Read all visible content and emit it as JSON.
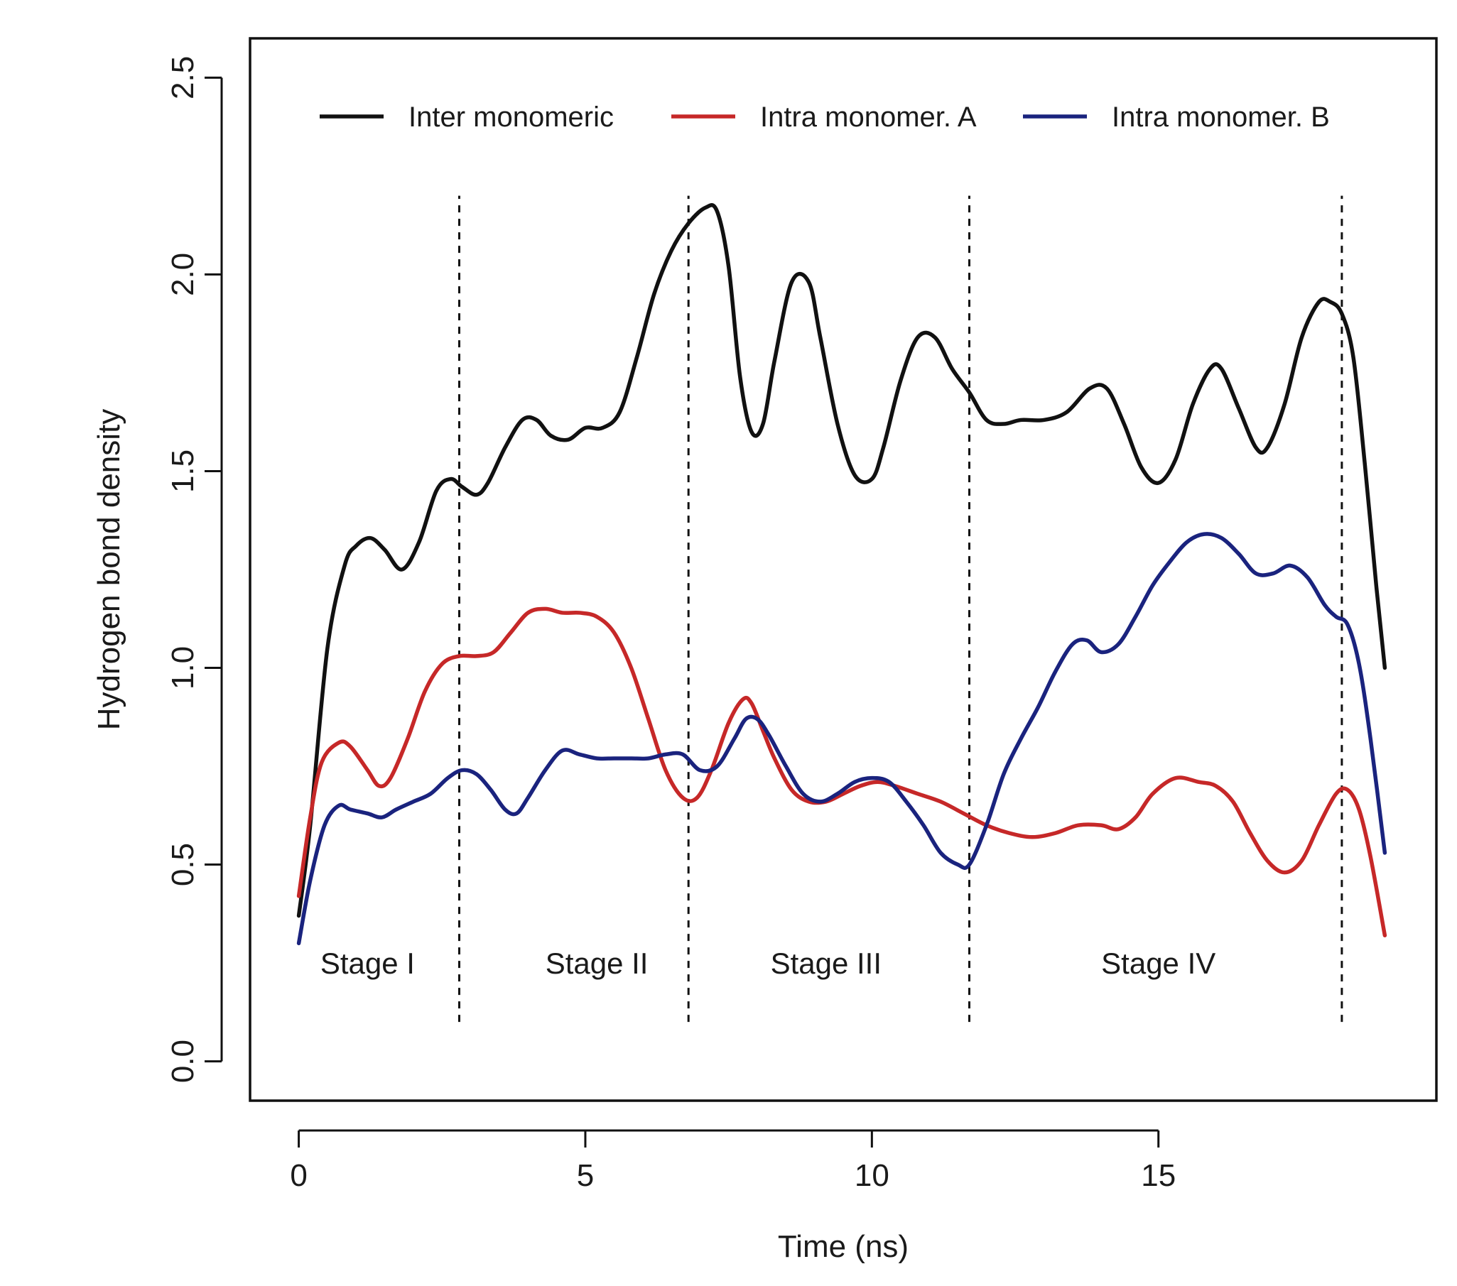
{
  "chart_data": {
    "type": "line",
    "title": "",
    "xlabel": "Time (ns)",
    "ylabel": "Hydrogen bond density",
    "xlim": [
      -0.85,
      19.85
    ],
    "ylim": [
      -0.1,
      2.6
    ],
    "xticks": [
      0,
      5,
      10,
      15
    ],
    "yticks": [
      0.0,
      0.5,
      1.0,
      1.5,
      2.0,
      2.5
    ],
    "xtick_labels": [
      "0",
      "5",
      "10",
      "15"
    ],
    "ytick_labels": [
      "0.0",
      "0.5",
      "1.0",
      "1.5",
      "2.0",
      "2.5"
    ],
    "grid": false,
    "legend_position": "top",
    "stage_boundaries": [
      2.8,
      6.8,
      11.7,
      18.2
    ],
    "stage_labels": [
      {
        "label": "Stage I",
        "x": 1.2,
        "y": 0.25
      },
      {
        "label": "Stage II",
        "x": 5.2,
        "y": 0.25
      },
      {
        "label": "Stage III",
        "x": 9.2,
        "y": 0.25
      },
      {
        "label": "Stage IV",
        "x": 15.0,
        "y": 0.25
      }
    ],
    "series": [
      {
        "name": "Inter monomeric",
        "color": "#111111",
        "x": [
          0,
          0.2,
          0.5,
          0.8,
          1.0,
          1.25,
          1.5,
          1.8,
          2.1,
          2.4,
          2.65,
          2.85,
          3.1,
          3.3,
          3.6,
          3.9,
          4.15,
          4.4,
          4.7,
          5.0,
          5.3,
          5.6,
          5.9,
          6.2,
          6.5,
          6.8,
          7.1,
          7.3,
          7.5,
          7.7,
          7.9,
          8.1,
          8.3,
          8.6,
          8.9,
          9.1,
          9.4,
          9.7,
          10.0,
          10.2,
          10.5,
          10.8,
          11.1,
          11.4,
          11.7,
          12.0,
          12.3,
          12.6,
          13.0,
          13.4,
          13.8,
          14.1,
          14.4,
          14.7,
          15.0,
          15.3,
          15.6,
          15.9,
          16.1,
          16.4,
          16.7,
          16.9,
          17.2,
          17.5,
          17.8,
          18.0,
          18.2,
          18.4,
          18.6,
          18.8,
          18.95
        ],
        "values": [
          0.37,
          0.6,
          1.05,
          1.26,
          1.31,
          1.33,
          1.3,
          1.25,
          1.32,
          1.45,
          1.48,
          1.46,
          1.44,
          1.47,
          1.56,
          1.63,
          1.63,
          1.59,
          1.58,
          1.61,
          1.61,
          1.65,
          1.79,
          1.95,
          2.06,
          2.13,
          2.17,
          2.16,
          2.02,
          1.74,
          1.6,
          1.62,
          1.78,
          1.98,
          1.98,
          1.84,
          1.62,
          1.49,
          1.48,
          1.56,
          1.73,
          1.84,
          1.84,
          1.76,
          1.7,
          1.63,
          1.62,
          1.63,
          1.63,
          1.65,
          1.71,
          1.71,
          1.62,
          1.51,
          1.47,
          1.53,
          1.67,
          1.76,
          1.76,
          1.66,
          1.56,
          1.56,
          1.67,
          1.84,
          1.93,
          1.93,
          1.9,
          1.79,
          1.52,
          1.21,
          1.0
        ]
      },
      {
        "name": "Intra monomer. A",
        "color": "#c62828",
        "x": [
          0,
          0.2,
          0.4,
          0.7,
          0.9,
          1.2,
          1.4,
          1.6,
          1.9,
          2.2,
          2.5,
          2.8,
          3.1,
          3.4,
          3.7,
          4.0,
          4.3,
          4.6,
          4.9,
          5.2,
          5.5,
          5.8,
          6.1,
          6.4,
          6.7,
          6.95,
          7.2,
          7.5,
          7.75,
          7.9,
          8.1,
          8.3,
          8.6,
          8.9,
          9.2,
          9.5,
          9.8,
          10.1,
          10.4,
          10.8,
          11.2,
          11.6,
          12.0,
          12.4,
          12.8,
          13.2,
          13.6,
          14.0,
          14.3,
          14.6,
          14.9,
          15.3,
          15.7,
          16.0,
          16.3,
          16.6,
          16.9,
          17.2,
          17.5,
          17.8,
          18.1,
          18.3,
          18.5,
          18.7,
          18.95
        ],
        "values": [
          0.42,
          0.62,
          0.76,
          0.81,
          0.8,
          0.74,
          0.7,
          0.72,
          0.82,
          0.94,
          1.01,
          1.03,
          1.03,
          1.04,
          1.09,
          1.14,
          1.15,
          1.14,
          1.14,
          1.13,
          1.09,
          1.0,
          0.87,
          0.74,
          0.67,
          0.67,
          0.74,
          0.86,
          0.92,
          0.91,
          0.84,
          0.77,
          0.69,
          0.66,
          0.66,
          0.68,
          0.7,
          0.71,
          0.7,
          0.68,
          0.66,
          0.63,
          0.6,
          0.58,
          0.57,
          0.58,
          0.6,
          0.6,
          0.59,
          0.62,
          0.68,
          0.72,
          0.71,
          0.7,
          0.66,
          0.58,
          0.51,
          0.48,
          0.51,
          0.6,
          0.68,
          0.69,
          0.64,
          0.52,
          0.32
        ]
      },
      {
        "name": "Intra monomer. B",
        "color": "#1a237e",
        "x": [
          0,
          0.2,
          0.45,
          0.7,
          0.9,
          1.2,
          1.45,
          1.7,
          2.0,
          2.3,
          2.6,
          2.85,
          3.1,
          3.35,
          3.6,
          3.8,
          4.0,
          4.3,
          4.6,
          4.9,
          5.2,
          5.5,
          5.8,
          6.1,
          6.4,
          6.7,
          7.0,
          7.3,
          7.6,
          7.8,
          8.0,
          8.2,
          8.5,
          8.8,
          9.1,
          9.4,
          9.7,
          10.0,
          10.3,
          10.6,
          10.9,
          11.2,
          11.5,
          11.7,
          12.0,
          12.3,
          12.6,
          12.9,
          13.2,
          13.5,
          13.75,
          14.0,
          14.3,
          14.6,
          14.9,
          15.2,
          15.5,
          15.8,
          16.1,
          16.4,
          16.7,
          17.0,
          17.3,
          17.6,
          17.9,
          18.1,
          18.3,
          18.5,
          18.7,
          18.95
        ],
        "values": [
          0.3,
          0.46,
          0.6,
          0.65,
          0.64,
          0.63,
          0.62,
          0.64,
          0.66,
          0.68,
          0.72,
          0.74,
          0.73,
          0.69,
          0.64,
          0.63,
          0.67,
          0.74,
          0.79,
          0.78,
          0.77,
          0.77,
          0.77,
          0.77,
          0.78,
          0.78,
          0.74,
          0.75,
          0.82,
          0.87,
          0.87,
          0.83,
          0.75,
          0.68,
          0.66,
          0.68,
          0.71,
          0.72,
          0.71,
          0.66,
          0.6,
          0.53,
          0.5,
          0.5,
          0.6,
          0.73,
          0.82,
          0.9,
          0.99,
          1.06,
          1.07,
          1.04,
          1.06,
          1.13,
          1.21,
          1.27,
          1.32,
          1.34,
          1.33,
          1.29,
          1.24,
          1.24,
          1.26,
          1.23,
          1.16,
          1.13,
          1.11,
          1.01,
          0.82,
          0.53
        ]
      }
    ]
  }
}
